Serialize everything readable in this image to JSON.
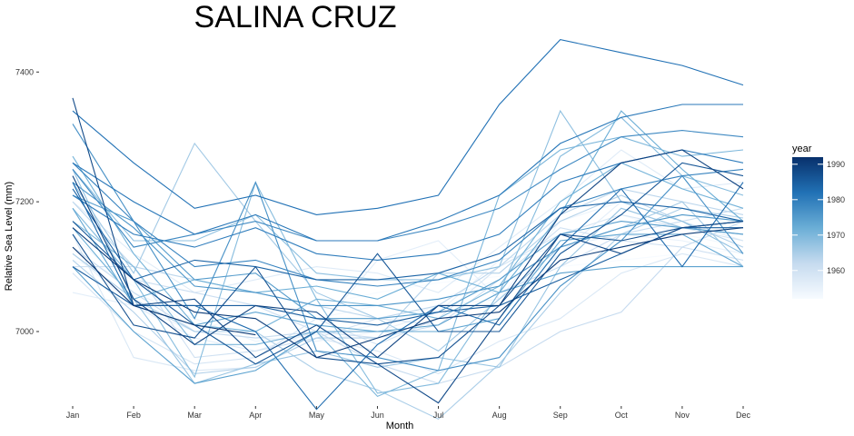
{
  "chart_data": {
    "type": "line",
    "title": "SALINA CRUZ",
    "xlabel": "Month",
    "ylabel": "Relative Sea Level (mm)",
    "categories": [
      "Jan",
      "Feb",
      "Mar",
      "Apr",
      "May",
      "Jun",
      "Jul",
      "Aug",
      "Sep",
      "Oct",
      "Nov",
      "Dec"
    ],
    "ylim": [
      6895,
      7455
    ],
    "yticks": [
      7000,
      7200,
      7400
    ],
    "grid": false,
    "legend": {
      "title": "year",
      "position": "right",
      "type": "colorbar",
      "range": [
        1952,
        1992
      ],
      "ticks": [
        1960,
        1970,
        1980,
        1990
      ],
      "color_low": "#f7fbff",
      "color_high": "#08306b"
    },
    "series": [
      {
        "year": 1952,
        "values": [
          7125,
          7070,
          7040,
          7030,
          7040,
          7060,
          7075,
          7085,
          7100,
          7110,
          7120,
          7125
        ]
      },
      {
        "year": 1953,
        "values": [
          7110,
          7080,
          7000,
          7030,
          7020,
          7040,
          7050,
          7080,
          7120,
          7180,
          7150,
          7130
        ]
      },
      {
        "year": 1954,
        "values": [
          7150,
          7060,
          7020,
          6985,
          6995,
          7010,
          7040,
          7050,
          7170,
          7200,
          7190,
          7160
        ]
      },
      {
        "year": 1955,
        "values": [
          7120,
          7040,
          7000,
          6990,
          6985,
          7000,
          7030,
          7110,
          7130,
          7150,
          7140,
          7120
        ]
      },
      {
        "year": 1956,
        "values": [
          7060,
          7040,
          6990,
          6970,
          7000,
          7110,
          7140,
          7050,
          7120,
          7200,
          7170,
          7140
        ]
      },
      {
        "year": 1957,
        "values": [
          7200,
          7120,
          7060,
          7080,
          7100,
          7090,
          7060,
          7130,
          7200,
          7280,
          7220,
          7230
        ]
      },
      {
        "year": 1958,
        "values": [
          7150,
          6960,
          6940,
          6945,
          6990,
          6970,
          6935,
          6985,
          7020,
          7090,
          7120,
          7100
        ]
      },
      {
        "year": 1959,
        "values": [
          7090,
          7000,
          6950,
          6960,
          7020,
          6980,
          7020,
          7100,
          7150,
          7180,
          7160,
          7140
        ]
      },
      {
        "year": 1960,
        "values": [
          7100,
          7100,
          6960,
          6970,
          6990,
          7020,
          7010,
          7080,
          7160,
          7140,
          7130,
          7110
        ]
      },
      {
        "year": 1961,
        "values": [
          7190,
          7080,
          7060,
          7040,
          7000,
          6990,
          7010,
          7060,
          7100,
          7150,
          7170,
          7190
        ]
      },
      {
        "year": 1962,
        "values": [
          7130,
          7060,
          7000,
          6990,
          7000,
          6950,
          6920,
          6945,
          7000,
          7030,
          7130,
          7170
        ]
      },
      {
        "year": 1963,
        "values": [
          7200,
          7100,
          7080,
          7060,
          7040,
          7020,
          7040,
          7100,
          7180,
          7220,
          7200,
          7180
        ]
      },
      {
        "year": 1964,
        "values": [
          7110,
          7030,
          6935,
          6945,
          6990,
          6990,
          7090,
          7090,
          7170,
          7210,
          7170,
          7130
        ]
      },
      {
        "year": 1965,
        "values": [
          7120,
          7050,
          7000,
          7000,
          6940,
          6910,
          6865,
          6950,
          7060,
          7150,
          7190,
          7175
        ]
      },
      {
        "year": 1966,
        "values": [
          7230,
          7090,
          7290,
          7170,
          7060,
          7020,
          6970,
          7050,
          7130,
          7160,
          7200,
          7100
        ]
      },
      {
        "year": 1967,
        "values": [
          7250,
          7050,
          6920,
          6950,
          6970,
          6945,
          6960,
          6945,
          7100,
          7190,
          7160,
          7150
        ]
      },
      {
        "year": 1968,
        "values": [
          7250,
          7140,
          7140,
          7180,
          7090,
          7080,
          7080,
          7100,
          7340,
          7200,
          7170,
          7120
        ]
      },
      {
        "year": 1969,
        "values": [
          7190,
          7080,
          6930,
          7230,
          7050,
          6905,
          6920,
          7060,
          7270,
          7330,
          7240,
          7210
        ]
      },
      {
        "year": 1970,
        "values": [
          7170,
          7100,
          6980,
          6980,
          7000,
          6900,
          6940,
          7210,
          7280,
          7300,
          7270,
          7280
        ]
      },
      {
        "year": 1971,
        "values": [
          7270,
          7120,
          7010,
          7000,
          7050,
          7040,
          7020,
          7070,
          7200,
          7260,
          7220,
          7190
        ]
      },
      {
        "year": 1972,
        "values": [
          7160,
          7050,
          7080,
          7060,
          7070,
          7050,
          7090,
          7060,
          7180,
          7340,
          7250,
          7170
        ]
      },
      {
        "year": 1973,
        "values": [
          7190,
          7040,
          7010,
          7030,
          7010,
          7000,
          7000,
          7020,
          7140,
          7150,
          7150,
          7100
        ]
      },
      {
        "year": 1974,
        "values": [
          7100,
          7000,
          6920,
          6940,
          7000,
          7000,
          7010,
          7060,
          7090,
          7100,
          7100,
          7100
        ]
      },
      {
        "year": 1975,
        "values": [
          7210,
          7170,
          7080,
          7090,
          7020,
          7020,
          7030,
          7080,
          7150,
          7170,
          7160,
          7150
        ]
      },
      {
        "year": 1976,
        "values": [
          7230,
          7160,
          7070,
          7060,
          7040,
          7040,
          7050,
          7070,
          7130,
          7160,
          7180,
          7170
        ]
      },
      {
        "year": 1977,
        "values": [
          7320,
          7170,
          7020,
          7230,
          6970,
          6960,
          6940,
          6960,
          7070,
          7140,
          7240,
          7120
        ]
      },
      {
        "year": 1978,
        "values": [
          7250,
          7130,
          7150,
          7170,
          7140,
          7140,
          7160,
          7190,
          7250,
          7300,
          7310,
          7300
        ]
      },
      {
        "year": 1979,
        "values": [
          7260,
          7170,
          7100,
          7110,
          7080,
          7070,
          7080,
          7110,
          7190,
          7220,
          7240,
          7250
        ]
      },
      {
        "year": 1980,
        "values": [
          7210,
          7150,
          7130,
          7160,
          7120,
          7110,
          7120,
          7150,
          7230,
          7260,
          7280,
          7260
        ]
      },
      {
        "year": 1981,
        "values": [
          7260,
          7200,
          7150,
          7180,
          7140,
          7140,
          7170,
          7210,
          7290,
          7330,
          7350,
          7350
        ]
      },
      {
        "year": 1982,
        "values": [
          7340,
          7260,
          7190,
          7210,
          7180,
          7190,
          7210,
          7350,
          7450,
          7430,
          7410,
          7380
        ]
      },
      {
        "year": 1983,
        "values": [
          7230,
          7040,
          7040,
          7000,
          6880,
          6980,
          7040,
          7010,
          7130,
          7220,
          7100,
          7230
        ]
      },
      {
        "year": 1984,
        "values": [
          7220,
          7080,
          7110,
          7100,
          7080,
          7080,
          7090,
          7120,
          7190,
          7200,
          7190,
          7170
        ]
      },
      {
        "year": 1985,
        "values": [
          7100,
          7040,
          7040,
          7040,
          7020,
          7010,
          7030,
          7040,
          7080,
          7120,
          7160,
          7160
        ]
      },
      {
        "year": 1986,
        "values": [
          7170,
          7080,
          7010,
          6950,
          7000,
          7120,
          7000,
          7000,
          7120,
          7180,
          7260,
          7240
        ]
      },
      {
        "year": 1987,
        "values": [
          7150,
          7010,
          6990,
          7100,
          6960,
          6950,
          6960,
          7040,
          7150,
          7140,
          7160,
          7170
        ]
      },
      {
        "year": 1988,
        "values": [
          7360,
          7040,
          7050,
          6960,
          7010,
          6950,
          6890,
          7020,
          7150,
          7120,
          7160,
          7170
        ]
      },
      {
        "year": 1989,
        "values": [
          7240,
          7050,
          6980,
          7040,
          7030,
          6960,
          7040,
          7040,
          7180,
          7260,
          7280,
          7220
        ]
      },
      {
        "year": 1990,
        "values": [
          7160,
          7080,
          7030,
          7020,
          6960,
          6990,
          7020,
          7030,
          7110,
          7130,
          7150,
          7160
        ]
      },
      {
        "year": 1991,
        "values": [
          7130,
          7040,
          7010,
          6995,
          null,
          null,
          null,
          null,
          null,
          null,
          null,
          null
        ]
      }
    ]
  }
}
